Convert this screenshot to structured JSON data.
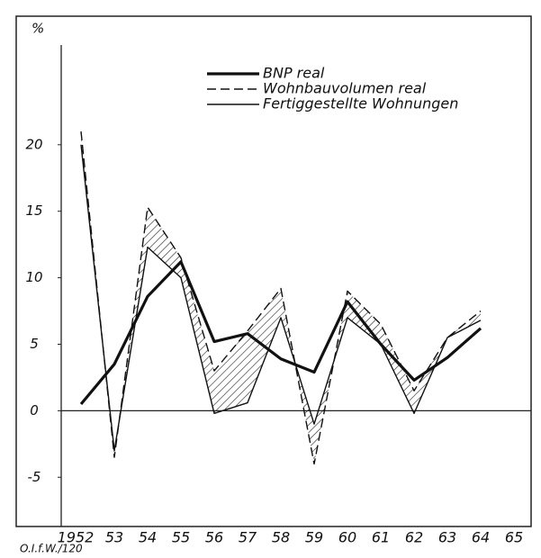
{
  "chart_data": {
    "type": "line",
    "ylabel": "%",
    "note": "O.I.f.W./120",
    "categories": [
      "1952",
      "53",
      "54",
      "55",
      "56",
      "57",
      "58",
      "59",
      "60",
      "61",
      "62",
      "63",
      "64",
      "65"
    ],
    "series": [
      {
        "name": "BNP real",
        "color": "#111111",
        "width": 3.2,
        "dash": "none",
        "values": [
          0.5,
          3.5,
          8.6,
          11.2,
          5.2,
          5.8,
          3.9,
          2.9,
          8.2,
          5.0,
          2.3,
          4.0,
          6.2,
          null
        ]
      },
      {
        "name": "Wohnbauvolumen real",
        "color": "#111111",
        "width": 1.4,
        "dash": "10 5",
        "values": [
          21,
          -3.5,
          15.3,
          11.5,
          3.0,
          6.0,
          9.2,
          -4.0,
          9.0,
          6.5,
          1.5,
          5.5,
          7.5,
          null
        ]
      },
      {
        "name": "Fertiggestellte Wohnungen",
        "color": "#111111",
        "width": 1.4,
        "dash": "none",
        "values": [
          20,
          -3.0,
          12.3,
          10.0,
          -0.2,
          0.6,
          7.0,
          -1.0,
          7.0,
          5.0,
          -0.2,
          5.5,
          6.8,
          null
        ]
      }
    ],
    "ylim": [
      -8.5,
      27.5
    ],
    "yticks": [
      -5,
      0,
      5,
      10,
      15,
      20
    ],
    "zero_line": true,
    "hatch_between": [
      1,
      2
    ]
  }
}
